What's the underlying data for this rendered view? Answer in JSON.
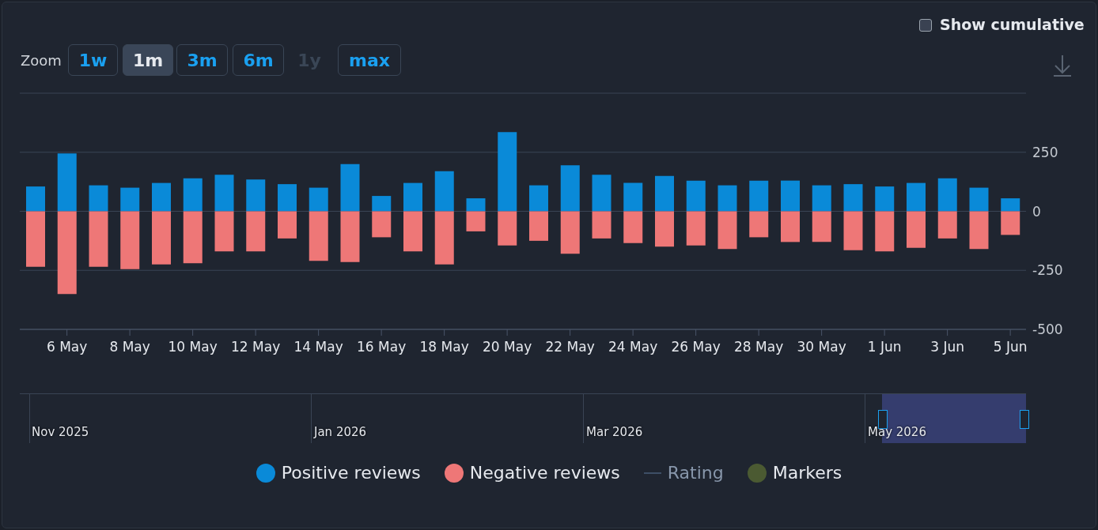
{
  "chart_data": {
    "type": "bar",
    "stacked": true,
    "categories": [
      null,
      "6 May",
      null,
      "8 May",
      null,
      "10 May",
      null,
      "12 May",
      null,
      "14 May",
      null,
      "16 May",
      null,
      "18 May",
      null,
      "20 May",
      null,
      "22 May",
      null,
      "24 May",
      null,
      "26 May",
      null,
      "28 May",
      null,
      "30 May",
      null,
      "1 Jun",
      null,
      "3 Jun",
      null,
      "5 Jun"
    ],
    "series": [
      {
        "name": "Positive reviews",
        "color": "#0a8ad8",
        "values": [
          105,
          245,
          110,
          100,
          120,
          140,
          155,
          135,
          115,
          100,
          200,
          65,
          120,
          170,
          55,
          335,
          110,
          195,
          155,
          120,
          150,
          130,
          110,
          130,
          130,
          110,
          115,
          105,
          120,
          140,
          100,
          55
        ]
      },
      {
        "name": "Negative reviews",
        "color": "#ee7777",
        "values": [
          -235,
          -350,
          -235,
          -245,
          -225,
          -220,
          -170,
          -170,
          -115,
          -210,
          -215,
          -110,
          -170,
          -225,
          -85,
          -145,
          -125,
          -180,
          -115,
          -135,
          -150,
          -145,
          -160,
          -110,
          -130,
          -130,
          -165,
          -170,
          -155,
          -115,
          -160,
          -100
        ]
      },
      {
        "name": "Rating",
        "type": "line",
        "color": "#3d4f66",
        "values": [
          null,
          null,
          null,
          null,
          null,
          null,
          null,
          null,
          null,
          null,
          null,
          null,
          null,
          null,
          null,
          null,
          null,
          null,
          null,
          null,
          null,
          null,
          null,
          null,
          null,
          null,
          null,
          null,
          null,
          null,
          null,
          null
        ]
      },
      {
        "name": "Markers",
        "type": "scatter",
        "color": "#4b5a32",
        "values": [
          null,
          null,
          null,
          null,
          null,
          null,
          null,
          null,
          null,
          null,
          null,
          null,
          null,
          null,
          null,
          null,
          null,
          null,
          null,
          null,
          null,
          null,
          null,
          null,
          null,
          null,
          null,
          null,
          null,
          null,
          null,
          null
        ]
      }
    ],
    "ylim": [
      -500,
      500
    ],
    "yticks": [
      -500,
      -250,
      0,
      250,
      {
        "value": 500,
        "label": null
      }
    ],
    "grid": "y",
    "legend": "bottom",
    "annotations": [
      "Zoom",
      "1w",
      "1m",
      "3m",
      "6m",
      "1y",
      "max",
      "Show cumulative",
      "Nov 2025",
      "Jan 2026",
      "Mar 2026",
      "May 2026"
    ]
  }
}
